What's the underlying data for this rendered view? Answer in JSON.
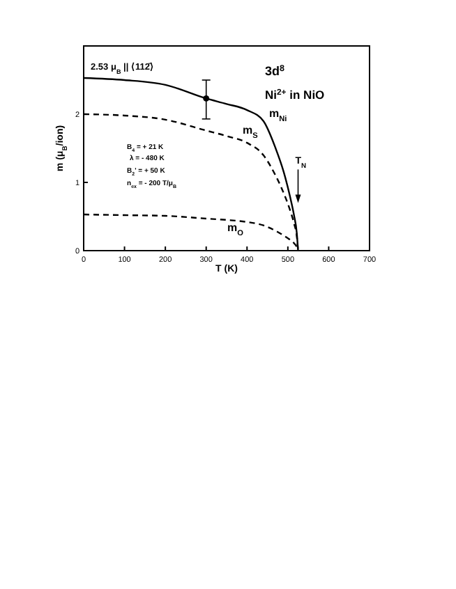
{
  "chart_data": {
    "type": "line",
    "xlabel": "T (K)",
    "ylabel": "m (μ$_{B}$/ion)",
    "xlim": [
      0,
      700
    ],
    "ylim": [
      0,
      3
    ],
    "xticks": [
      0,
      100,
      200,
      300,
      400,
      500,
      600,
      700
    ],
    "yticks": [
      0,
      1,
      2,
      {
        "value": 3,
        "label": null
      }
    ],
    "x": [
      0,
      100,
      200,
      300,
      350,
      400,
      440,
      470,
      490,
      505,
      515,
      522,
      525
    ],
    "series": [
      {
        "name": "m$_{Ni}$",
        "color": "#000000",
        "line_style": "solid",
        "values": [
          2.53,
          2.5,
          2.43,
          2.23,
          2.15,
          2.06,
          1.9,
          1.5,
          1.15,
          0.8,
          0.52,
          0.25,
          0
        ]
      },
      {
        "name": "m$_{S}$",
        "color": "#000000",
        "line_style": "dashed",
        "values": [
          2.0,
          1.98,
          1.92,
          1.76,
          1.68,
          1.58,
          1.4,
          1.1,
          0.84,
          0.6,
          0.4,
          0.2,
          0
        ]
      },
      {
        "name": "m$_{O}$",
        "color": "#000000",
        "line_style": "dashed",
        "values": [
          0.53,
          0.52,
          0.51,
          0.47,
          0.45,
          0.42,
          0.37,
          0.29,
          0.22,
          0.16,
          0.11,
          0.05,
          0
        ]
      },
      {
        "type": "scatter",
        "color": "#000000",
        "marker": "circle",
        "x": [
          300
        ],
        "values": [
          2.23
        ],
        "errors": [
          [
            1.93,
            2.5
          ]
        ]
      }
    ],
    "annotations": [
      "2.53 μ$_{B}$   || ⟨112̄⟩",
      "3d$^{8}$",
      "Ni$^{2+}$ in  NiO",
      "B$_{4}$ = + 21 K",
      "λ = - 480 K",
      "B$_{2}$' = + 50 K",
      "n$_{ex}$ = - 200 T/μ$_{B}$",
      {
        "text": "T$_{N}$",
        "x": 525,
        "y": 0.7
      }
    ]
  }
}
